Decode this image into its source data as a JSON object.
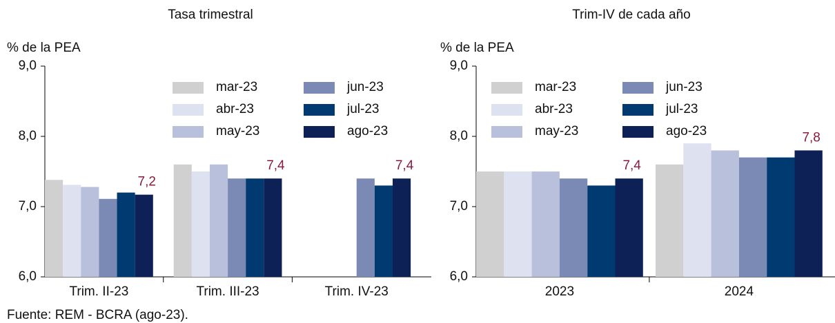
{
  "chart_data": [
    {
      "type": "bar",
      "title": "Tasa trimestral",
      "y_label": "% de la PEA",
      "categories": [
        "Trim. II-23",
        "Trim. III-23",
        "Trim. IV-23"
      ],
      "ylim": [
        6,
        9
      ],
      "yticks": [
        {
          "value": 6,
          "label": "6,0"
        },
        {
          "value": 7,
          "label": "7,0"
        },
        {
          "value": 8,
          "label": "8,0"
        },
        {
          "value": 9,
          "label": "9,0"
        }
      ],
      "grid": false,
      "series": [
        {
          "name": "mar-23",
          "color": "#d0d0d0",
          "values": [
            7.38,
            7.6,
            null
          ]
        },
        {
          "name": "abr-23",
          "color": "#dde1f0",
          "values": [
            7.31,
            7.5,
            null
          ]
        },
        {
          "name": "may-23",
          "color": "#b8c0dc",
          "values": [
            7.28,
            7.6,
            null
          ]
        },
        {
          "name": "jun-23",
          "color": "#7b8ab5",
          "values": [
            7.11,
            7.4,
            7.4
          ]
        },
        {
          "name": "jul-23",
          "color": "#003a70",
          "values": [
            7.2,
            7.4,
            7.3
          ]
        },
        {
          "name": "ago-23",
          "color": "#0d2157",
          "values": [
            7.17,
            7.4,
            7.4
          ],
          "value_labels": [
            "7,2",
            "7,4",
            "7,4"
          ]
        }
      ]
    },
    {
      "type": "bar",
      "title": "Trim-IV de cada año",
      "y_label": "% de la PEA",
      "categories": [
        "2023",
        "2024"
      ],
      "ylim": [
        6,
        9
      ],
      "yticks": [
        {
          "value": 6,
          "label": "6,0"
        },
        {
          "value": 7,
          "label": "7,0"
        },
        {
          "value": 8,
          "label": "8,0"
        },
        {
          "value": 9,
          "label": "9,0"
        }
      ],
      "grid": false,
      "series": [
        {
          "name": "mar-23",
          "color": "#d0d0d0",
          "values": [
            7.5,
            7.6
          ]
        },
        {
          "name": "abr-23",
          "color": "#dde1f0",
          "values": [
            7.5,
            7.9
          ]
        },
        {
          "name": "may-23",
          "color": "#b8c0dc",
          "values": [
            7.5,
            7.8
          ]
        },
        {
          "name": "jun-23",
          "color": "#7b8ab5",
          "values": [
            7.4,
            7.7
          ]
        },
        {
          "name": "jul-23",
          "color": "#003a70",
          "values": [
            7.3,
            7.7
          ]
        },
        {
          "name": "ago-23",
          "color": "#0d2157",
          "values": [
            7.4,
            7.8
          ],
          "value_labels": [
            "7,4",
            "7,8"
          ]
        }
      ]
    }
  ],
  "source": "Fuente: REM - BCRA (ago-23)."
}
